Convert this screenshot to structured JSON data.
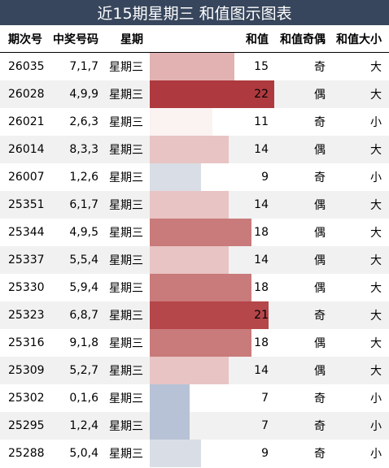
{
  "title": "近15期星期三 和值图示图表",
  "headers": {
    "period": "期次号",
    "numbers": "中奖号码",
    "weekday": "星期",
    "sum": "和值",
    "parity": "和值奇偶",
    "size": "和值大小"
  },
  "colors": {
    "title_bg": "#37465c",
    "alt_row_bg": "#f1f1f1",
    "sum_colors": {
      "7": "#b8c2d6",
      "9": "#d9dde5",
      "11": "#fbf2f2",
      "14": "#e8c4c4",
      "15": "#e2b2b2",
      "18": "#c97a7a",
      "21": "#b5464a",
      "22": "#ae3a3f"
    }
  },
  "rows": [
    {
      "period": "26035",
      "numbers": "7,1,7",
      "weekday": "星期三",
      "sum": "15",
      "parity": "奇",
      "size": "大"
    },
    {
      "period": "26028",
      "numbers": "4,9,9",
      "weekday": "星期三",
      "sum": "22",
      "parity": "偶",
      "size": "大"
    },
    {
      "period": "26021",
      "numbers": "2,6,3",
      "weekday": "星期三",
      "sum": "11",
      "parity": "奇",
      "size": "小"
    },
    {
      "period": "26014",
      "numbers": "8,3,3",
      "weekday": "星期三",
      "sum": "14",
      "parity": "偶",
      "size": "大"
    },
    {
      "period": "26007",
      "numbers": "1,2,6",
      "weekday": "星期三",
      "sum": "9",
      "parity": "奇",
      "size": "小"
    },
    {
      "period": "25351",
      "numbers": "6,1,7",
      "weekday": "星期三",
      "sum": "14",
      "parity": "偶",
      "size": "大"
    },
    {
      "period": "25344",
      "numbers": "4,9,5",
      "weekday": "星期三",
      "sum": "18",
      "parity": "偶",
      "size": "大"
    },
    {
      "period": "25337",
      "numbers": "5,5,4",
      "weekday": "星期三",
      "sum": "14",
      "parity": "偶",
      "size": "大"
    },
    {
      "period": "25330",
      "numbers": "5,9,4",
      "weekday": "星期三",
      "sum": "18",
      "parity": "偶",
      "size": "大"
    },
    {
      "period": "25323",
      "numbers": "6,8,7",
      "weekday": "星期三",
      "sum": "21",
      "parity": "奇",
      "size": "大"
    },
    {
      "period": "25316",
      "numbers": "9,1,8",
      "weekday": "星期三",
      "sum": "18",
      "parity": "偶",
      "size": "大"
    },
    {
      "period": "25309",
      "numbers": "5,2,7",
      "weekday": "星期三",
      "sum": "14",
      "parity": "偶",
      "size": "大"
    },
    {
      "period": "25302",
      "numbers": "0,1,6",
      "weekday": "星期三",
      "sum": "7",
      "parity": "奇",
      "size": "小"
    },
    {
      "period": "25295",
      "numbers": "1,2,4",
      "weekday": "星期三",
      "sum": "7",
      "parity": "奇",
      "size": "小"
    },
    {
      "period": "25288",
      "numbers": "5,0,4",
      "weekday": "星期三",
      "sum": "9",
      "parity": "奇",
      "size": "小"
    }
  ]
}
